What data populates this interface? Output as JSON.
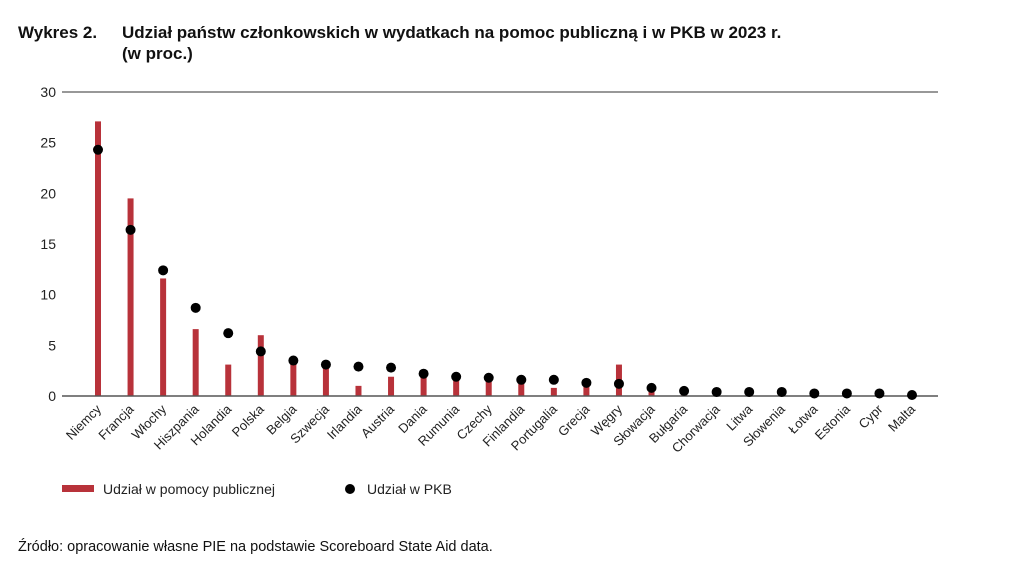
{
  "title": {
    "number": "Wykres 2.",
    "text": "Udział państw członkowskich w wydatkach na pomoc publiczną i w PKB w 2023 r.",
    "unit": "(w proc.)"
  },
  "source": "Źródło: opracowanie własne PIE na podstawie Scoreboard State Aid data.",
  "chart_data": {
    "type": "bar",
    "ylim": [
      0,
      30
    ],
    "yticks": [
      "0",
      "5",
      "10",
      "15",
      "20",
      "25",
      "30"
    ],
    "grid": "top line only",
    "legend_placement": "bottom-left",
    "categories": [
      "Niemcy",
      "Francja",
      "Włochy",
      "Hiszpania",
      "Holandia",
      "Polska",
      "Belgia",
      "Szwecja",
      "Irlandia",
      "Austria",
      "Dania",
      "Rumunia",
      "Czechy",
      "Finlandia",
      "Portugalia",
      "Grecja",
      "Węgry",
      "Słowacja",
      "Bułgaria",
      "Chorwacja",
      "Litwa",
      "Słowenia",
      "Łotwa",
      "Estonia",
      "Cypr",
      "Malta"
    ],
    "series": [
      {
        "name": "Udział w pomocy publicznej",
        "type": "bar",
        "color": "#b8323a",
        "values": [
          27.1,
          19.5,
          11.6,
          6.6,
          3.1,
          6.0,
          3.3,
          3.0,
          1.0,
          1.9,
          2.4,
          1.7,
          1.7,
          1.3,
          0.8,
          1.1,
          3.1,
          0.4,
          0.2,
          0.1,
          0.1,
          0.1,
          0.1,
          0.1,
          0.1,
          0.1
        ]
      },
      {
        "name": "Udział w PKB",
        "type": "scatter",
        "color": "#000000",
        "values": [
          24.3,
          16.4,
          12.4,
          8.7,
          6.2,
          4.4,
          3.5,
          3.1,
          2.9,
          2.8,
          2.2,
          1.9,
          1.8,
          1.6,
          1.6,
          1.3,
          1.2,
          0.8,
          0.5,
          0.4,
          0.4,
          0.4,
          0.25,
          0.25,
          0.25,
          0.1
        ]
      }
    ]
  }
}
